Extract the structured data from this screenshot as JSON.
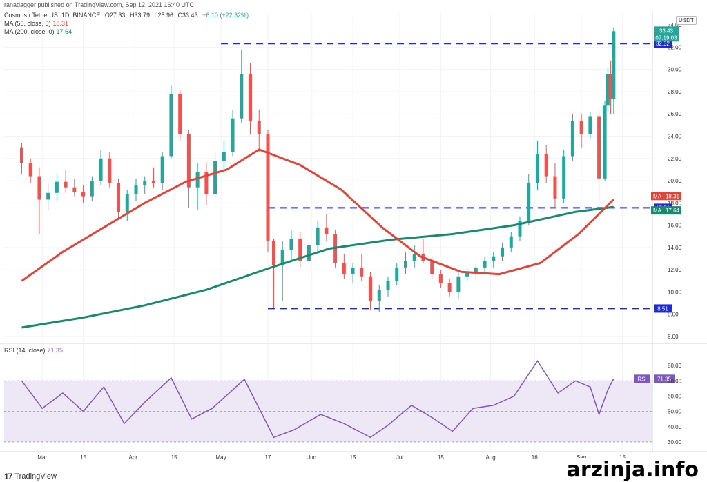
{
  "header": {
    "published": "ranadagger published on TradingView.com, Sep 12, 2021 16:40 UTC"
  },
  "symbol": {
    "name": "Cosmos / TetherUS, 1D, BINANCE",
    "open": "O27.33",
    "high": "H33.79",
    "low": "L25.96",
    "close": "C33.43",
    "change": "+6.10 (+22.32%)"
  },
  "ma50": {
    "label": "MA (50, close, 0)",
    "value": "18.31",
    "color": "#e0453a"
  },
  "ma200": {
    "label": "MA (200, close, 0)",
    "value": "17.64",
    "color": "#1a8a6e"
  },
  "rsi": {
    "label": "RSI (14, close)",
    "value": "71.35",
    "color": "#7e57c2",
    "tag": "RSI"
  },
  "price_axis": {
    "unit": "USDT",
    "ticks": [
      "34.00",
      "32.00",
      "30.00",
      "28.00",
      "26.00",
      "24.00",
      "22.00",
      "20.00",
      "18.00",
      "16.00",
      "14.00",
      "12.00",
      "10.00",
      "8.00",
      "6.00"
    ],
    "last_price": "33.43",
    "countdown": "07:19:03",
    "level_labels": [
      "32.32",
      "17.56",
      "8.51"
    ],
    "ma_tags": [
      {
        "tag": "MA",
        "value": "18.31"
      },
      {
        "tag": "MA",
        "value": "17.64"
      }
    ]
  },
  "rsi_axis": {
    "ticks": [
      "80.00",
      "70.00",
      "60.00",
      "50.00",
      "40.00",
      "30.00"
    ]
  },
  "time_axis": [
    "Mar",
    "15",
    "Apr",
    "15",
    "May",
    "17",
    "Jun",
    "15",
    "Jul",
    "15",
    "Aug",
    "16",
    "Sep",
    "15"
  ],
  "brand": {
    "icon": "17",
    "name": "TradingView"
  },
  "watermark": "arzinja.info",
  "colors": {
    "up": "#26a69a",
    "down": "#ef5350",
    "level": "#1e2bd1",
    "rsi_band": "#ede7f6"
  },
  "chart_data": {
    "type": "candlestick",
    "title": "Cosmos / TetherUS, 1D, BINANCE",
    "ylim": [
      5.5,
      35
    ],
    "levels": [
      32.32,
      17.56,
      8.51
    ],
    "candles": [
      [
        "2021-02-22",
        23.0,
        23.4,
        20.6,
        21.6
      ],
      [
        "2021-02-25",
        21.6,
        22.0,
        19.8,
        20.4
      ],
      [
        "2021-02-28",
        20.4,
        21.2,
        15.2,
        18.3
      ],
      [
        "2021-03-03",
        18.3,
        19.8,
        17.4,
        18.9
      ],
      [
        "2021-03-06",
        18.9,
        20.6,
        18.2,
        19.9
      ],
      [
        "2021-03-09",
        19.9,
        21.0,
        18.9,
        19.4
      ],
      [
        "2021-03-12",
        19.4,
        20.2,
        18.6,
        19.0
      ],
      [
        "2021-03-15",
        19.0,
        19.6,
        18.0,
        18.6
      ],
      [
        "2021-03-18",
        18.6,
        20.4,
        18.2,
        20.0
      ],
      [
        "2021-03-21",
        20.0,
        22.8,
        19.6,
        22.0
      ],
      [
        "2021-03-24",
        22.0,
        22.6,
        19.4,
        19.8
      ],
      [
        "2021-03-27",
        19.8,
        20.2,
        16.6,
        17.2
      ],
      [
        "2021-03-30",
        17.2,
        19.2,
        16.4,
        18.8
      ],
      [
        "2021-04-02",
        18.8,
        20.2,
        18.2,
        19.6
      ],
      [
        "2021-04-05",
        19.6,
        20.4,
        18.8,
        20.0
      ],
      [
        "2021-04-08",
        20.0,
        21.2,
        19.4,
        19.8
      ],
      [
        "2021-04-11",
        19.8,
        22.6,
        19.2,
        22.2
      ],
      [
        "2021-04-14",
        22.2,
        28.6,
        22.0,
        27.8
      ],
      [
        "2021-04-17",
        27.8,
        28.2,
        23.6,
        24.2
      ],
      [
        "2021-04-20",
        24.2,
        24.6,
        17.6,
        19.4
      ],
      [
        "2021-04-23",
        19.4,
        21.6,
        17.4,
        20.8
      ],
      [
        "2021-04-26",
        20.8,
        21.6,
        17.8,
        18.8
      ],
      [
        "2021-04-29",
        18.8,
        22.6,
        18.4,
        21.8
      ],
      [
        "2021-05-02",
        21.8,
        23.6,
        20.6,
        22.6
      ],
      [
        "2021-05-05",
        22.6,
        26.4,
        22.2,
        25.6
      ],
      [
        "2021-05-08",
        25.6,
        31.8,
        25.2,
        29.6
      ],
      [
        "2021-05-11",
        29.6,
        30.6,
        24.2,
        25.4
      ],
      [
        "2021-05-14",
        25.4,
        26.4,
        22.6,
        24.2
      ],
      [
        "2021-05-17",
        24.2,
        24.6,
        13.6,
        14.6
      ],
      [
        "2021-05-19",
        14.6,
        14.8,
        8.6,
        12.4
      ],
      [
        "2021-05-22",
        12.4,
        14.6,
        9.2,
        13.8
      ],
      [
        "2021-05-25",
        13.8,
        15.6,
        12.8,
        14.8
      ],
      [
        "2021-05-28",
        14.8,
        15.4,
        12.2,
        12.8
      ],
      [
        "2021-05-31",
        12.8,
        14.6,
        12.4,
        14.2
      ],
      [
        "2021-06-03",
        14.2,
        16.4,
        13.6,
        15.8
      ],
      [
        "2021-06-06",
        15.8,
        17.0,
        14.6,
        15.2
      ],
      [
        "2021-06-09",
        15.2,
        15.6,
        12.2,
        12.6
      ],
      [
        "2021-06-12",
        12.6,
        13.4,
        11.2,
        11.6
      ],
      [
        "2021-06-15",
        11.6,
        12.6,
        10.8,
        12.2
      ],
      [
        "2021-06-18",
        12.2,
        13.4,
        11.0,
        11.4
      ],
      [
        "2021-06-21",
        11.4,
        11.8,
        8.4,
        9.2
      ],
      [
        "2021-06-24",
        9.2,
        10.6,
        8.2,
        10.2
      ],
      [
        "2021-06-27",
        10.2,
        11.4,
        9.6,
        11.0
      ],
      [
        "2021-06-30",
        11.0,
        12.6,
        10.6,
        12.2
      ],
      [
        "2021-07-03",
        12.2,
        13.6,
        11.6,
        12.8
      ],
      [
        "2021-07-06",
        12.8,
        14.2,
        12.2,
        13.4
      ],
      [
        "2021-07-09",
        13.4,
        14.8,
        12.6,
        12.8
      ],
      [
        "2021-07-12",
        12.8,
        13.2,
        11.2,
        11.6
      ],
      [
        "2021-07-15",
        11.6,
        12.0,
        10.4,
        10.8
      ],
      [
        "2021-07-18",
        10.8,
        11.2,
        9.6,
        10.0
      ],
      [
        "2021-07-21",
        10.0,
        11.8,
        9.4,
        11.4
      ],
      [
        "2021-07-24",
        11.4,
        12.2,
        11.0,
        11.8
      ],
      [
        "2021-07-27",
        11.8,
        12.6,
        11.2,
        12.2
      ],
      [
        "2021-07-30",
        12.2,
        13.2,
        11.8,
        12.8
      ],
      [
        "2021-08-02",
        12.8,
        13.6,
        12.2,
        13.2
      ],
      [
        "2021-08-05",
        13.2,
        14.4,
        12.8,
        14.0
      ],
      [
        "2021-08-08",
        14.0,
        15.4,
        13.6,
        15.0
      ],
      [
        "2021-08-11",
        15.0,
        16.8,
        14.6,
        16.4
      ],
      [
        "2021-08-14",
        16.4,
        20.6,
        16.0,
        19.8
      ],
      [
        "2021-08-17",
        19.8,
        23.6,
        19.2,
        22.4
      ],
      [
        "2021-08-20",
        22.4,
        23.2,
        19.8,
        20.4
      ],
      [
        "2021-08-23",
        20.4,
        21.6,
        17.6,
        18.4
      ],
      [
        "2021-08-26",
        18.4,
        22.8,
        18.0,
        22.2
      ],
      [
        "2021-08-29",
        22.2,
        26.0,
        21.8,
        25.4
      ],
      [
        "2021-09-01",
        25.4,
        26.0,
        23.0,
        24.2
      ],
      [
        "2021-09-04",
        24.2,
        26.2,
        23.8,
        25.8
      ],
      [
        "2021-09-07",
        25.8,
        26.4,
        18.2,
        20.2
      ],
      [
        "2021-09-09",
        20.2,
        27.2,
        20.0,
        26.8
      ],
      [
        "2021-09-10",
        26.8,
        30.2,
        26.2,
        29.6
      ],
      [
        "2021-09-11",
        29.6,
        30.8,
        25.96,
        27.33
      ],
      [
        "2021-09-12",
        27.33,
        33.79,
        25.96,
        33.43
      ]
    ],
    "ma50": [
      [
        "2021-02-22",
        11.0
      ],
      [
        "2021-03-08",
        13.6
      ],
      [
        "2021-03-22",
        15.8
      ],
      [
        "2021-04-05",
        18.0
      ],
      [
        "2021-04-19",
        19.9
      ],
      [
        "2021-05-03",
        21.0
      ],
      [
        "2021-05-14",
        22.8
      ],
      [
        "2021-05-28",
        21.4
      ],
      [
        "2021-06-11",
        19.2
      ],
      [
        "2021-06-25",
        15.8
      ],
      [
        "2021-07-08",
        13.2
      ],
      [
        "2021-07-22",
        11.8
      ],
      [
        "2021-08-04",
        11.6
      ],
      [
        "2021-08-18",
        12.6
      ],
      [
        "2021-08-31",
        15.2
      ],
      [
        "2021-09-12",
        18.31
      ]
    ],
    "ma200": [
      [
        "2021-02-22",
        6.8
      ],
      [
        "2021-03-15",
        7.7
      ],
      [
        "2021-04-05",
        8.8
      ],
      [
        "2021-04-26",
        10.2
      ],
      [
        "2021-05-17",
        12.1
      ],
      [
        "2021-06-07",
        13.9
      ],
      [
        "2021-06-28",
        14.7
      ],
      [
        "2021-07-19",
        15.2
      ],
      [
        "2021-08-09",
        16.0
      ],
      [
        "2021-08-30",
        17.2
      ],
      [
        "2021-09-12",
        17.64
      ]
    ],
    "rsi": {
      "ylim": [
        25,
        90
      ],
      "band": [
        30,
        70
      ],
      "points": [
        [
          "2021-02-22",
          70
        ],
        [
          "2021-03-01",
          52
        ],
        [
          "2021-03-08",
          62
        ],
        [
          "2021-03-15",
          50
        ],
        [
          "2021-03-22",
          66
        ],
        [
          "2021-03-29",
          42
        ],
        [
          "2021-04-05",
          56
        ],
        [
          "2021-04-14",
          72
        ],
        [
          "2021-04-21",
          45
        ],
        [
          "2021-04-28",
          52
        ],
        [
          "2021-05-09",
          71
        ],
        [
          "2021-05-19",
          33
        ],
        [
          "2021-05-26",
          38
        ],
        [
          "2021-06-04",
          48
        ],
        [
          "2021-06-12",
          42
        ],
        [
          "2021-06-21",
          33
        ],
        [
          "2021-06-27",
          41
        ],
        [
          "2021-07-05",
          54
        ],
        [
          "2021-07-12",
          46
        ],
        [
          "2021-07-19",
          37
        ],
        [
          "2021-07-26",
          52
        ],
        [
          "2021-08-02",
          54
        ],
        [
          "2021-08-09",
          60
        ],
        [
          "2021-08-17",
          83
        ],
        [
          "2021-08-24",
          62
        ],
        [
          "2021-08-30",
          70
        ],
        [
          "2021-09-04",
          66
        ],
        [
          "2021-09-07",
          48
        ],
        [
          "2021-09-10",
          64
        ],
        [
          "2021-09-12",
          71.35
        ]
      ]
    }
  }
}
